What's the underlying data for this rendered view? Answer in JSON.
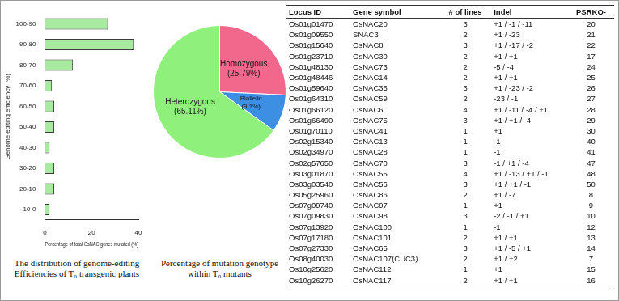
{
  "chart_data": [
    {
      "type": "bar",
      "orientation": "horizontal",
      "title": "The distribution of genome-editing Efficiencies of T₀ transgenic plants",
      "x_label": "Percentage of total OsNAC genes mutated (%)",
      "y_label": "Genome editing efficiency (%)",
      "categories": [
        "100-90",
        "90-80",
        "80-70",
        "70-60",
        "60-50",
        "50-40",
        "40-30",
        "30-20",
        "20-10",
        "10-0"
      ],
      "values": [
        27,
        38,
        12,
        3,
        4,
        4,
        2,
        4,
        4,
        2
      ],
      "color": "#a8eba0",
      "xlim": [
        0,
        40
      ],
      "xticks": [
        0,
        20,
        40
      ],
      "grid": false
    },
    {
      "type": "pie",
      "title": "Percentage of mutation genotype within T₀ mutants",
      "categories": [
        "Homozygous",
        "Biallelic",
        "Heterozygous"
      ],
      "values": [
        25.79,
        9.1,
        65.11
      ],
      "value_labels": [
        "(25.79%)",
        "(9.1%)",
        "(65.11%)"
      ],
      "colors": [
        "#f2678c",
        "#3c8fe2",
        "#8ff07c"
      ],
      "data_labels": true
    }
  ],
  "table": {
    "columns": [
      "Locus ID",
      "Gene symbol",
      "# of lines",
      "Indel",
      "PSRKO-"
    ],
    "rows": [
      [
        "Os01g01470",
        "OsNAC20",
        3,
        "+1 / -1 / -11",
        20
      ],
      [
        "Os01g09550",
        "SNAC3",
        2,
        "+1 / -23",
        21
      ],
      [
        "Os01g15640",
        "OsNAC8",
        3,
        "+1 / -17 / -2",
        22
      ],
      [
        "Os01g23710",
        "OsNAC30",
        2,
        "+1 / +1",
        17
      ],
      [
        "Os01g48130",
        "OsNAC73",
        2,
        "-5 / -4",
        24
      ],
      [
        "Os01g48446",
        "OsNAC14",
        2,
        "+1 / +1",
        25
      ],
      [
        "Os01g59640",
        "OsNAC35",
        3,
        "+1 / -23 / -2",
        26
      ],
      [
        "Os01g64310",
        "OsNAC59",
        2,
        "-23 / -1",
        27
      ],
      [
        "Os01g66120",
        "OsNAC6",
        4,
        "+1 / -11 / -4 / +1",
        28
      ],
      [
        "Os01g66490",
        "OsNAC75",
        3,
        "+1 / +1 / -4",
        29
      ],
      [
        "Os01g70110",
        "OsNAC41",
        1,
        "+1",
        30
      ],
      [
        "Os02g15340",
        "OsNAC13",
        1,
        "-1",
        40
      ],
      [
        "Os02g34970",
        "OsNAC28",
        1,
        "-1",
        41
      ],
      [
        "Os02g57650",
        "OsNAC70",
        3,
        "-1 / +1 / -4",
        47
      ],
      [
        "Os03g01870",
        "OsNAC55",
        4,
        "+1 / -13 / +1 / -1",
        48
      ],
      [
        "Os03g03540",
        "OsNAC56",
        3,
        "+1 / +1 / -1",
        50
      ],
      [
        "Os05g25960",
        "OsNAC86",
        2,
        "+1 / -7",
        8
      ],
      [
        "Os07g09740",
        "OsNAC97",
        1,
        "+1",
        9
      ],
      [
        "Os07g09830",
        "OsNAC98",
        3,
        "-2 / -1 / +1",
        10
      ],
      [
        "Os07g13920",
        "OsNAC100",
        1,
        "-1",
        12
      ],
      [
        "Os07g17180",
        "OsNAC101",
        2,
        "+1 / +1",
        13
      ],
      [
        "Os07g27330",
        "OsNAC65",
        3,
        "+1 / -5 / +1",
        14
      ],
      [
        "Os08g40030",
        "OsNAC107(CUC3)",
        2,
        "+1 / +2",
        7
      ],
      [
        "Os10g25620",
        "OsNAC112",
        1,
        "+1",
        15
      ],
      [
        "Os10g26270",
        "OsNAC117",
        2,
        "+1 / +1",
        16
      ]
    ]
  }
}
